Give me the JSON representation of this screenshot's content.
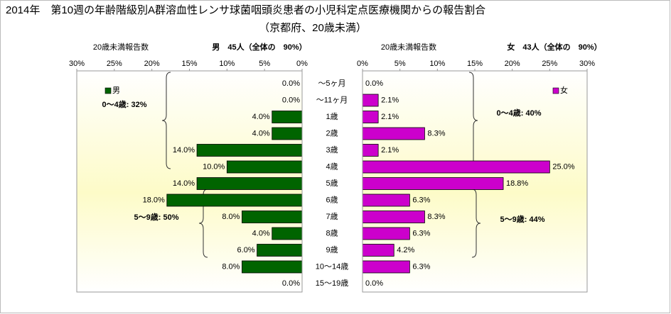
{
  "chart_data": {
    "type": "bar",
    "title": "2014年　第10週の年齢階級別A群溶血性レンサ球菌咽頭炎患者の小児科定点医療機関からの報告割合",
    "subtitle": "（京都府、20歳未満）",
    "categories": [
      "～5ヶ月",
      "～11ヶ月",
      "1歳",
      "2歳",
      "3歳",
      "4歳",
      "5歳",
      "6歳",
      "7歳",
      "8歳",
      "9歳",
      "10～14歳",
      "15～19歳"
    ],
    "series": [
      {
        "name": "男",
        "color": "#006400",
        "axis_label": "20歳未満報告数",
        "summary": "男　45人（全体の　90%）",
        "values": [
          0,
          0,
          4,
          4,
          14,
          10,
          14,
          18,
          8,
          4,
          6,
          8,
          0
        ],
        "value_labels": [
          "0.0%",
          "0.0%",
          "4.0%",
          "4.0%",
          "14.0%",
          "10.0%",
          "14.0%",
          "18.0%",
          "8.0%",
          "4.0%",
          "6.0%",
          "8.0%",
          "0.0%"
        ],
        "annotations": [
          "0～4歳: 32%",
          "5～9歳: 50%"
        ],
        "xlim": [
          0,
          30
        ],
        "reversed": true,
        "xticks": [
          {
            "value": 30,
            "label": "30%"
          },
          {
            "value": 25,
            "label": "25%"
          },
          {
            "value": 20,
            "label": "20%"
          },
          {
            "value": 15,
            "label": "15%"
          },
          {
            "value": 10,
            "label": "10%"
          },
          {
            "value": 5,
            "label": "5%"
          },
          {
            "value": 0,
            "label": "0%"
          }
        ]
      },
      {
        "name": "女",
        "color": "#cc00cc",
        "axis_label": "20歳未満報告数",
        "summary": "女　43人（全体の　90%）",
        "values": [
          0,
          2.1,
          2.1,
          8.3,
          2.1,
          25,
          18.8,
          6.3,
          8.3,
          6.3,
          4.2,
          6.3,
          0
        ],
        "value_labels": [
          "0.0%",
          "2.1%",
          "2.1%",
          "8.3%",
          "2.1%",
          "25.0%",
          "18.8%",
          "6.3%",
          "8.3%",
          "6.3%",
          "4.2%",
          "6.3%",
          "0.0%"
        ],
        "annotations": [
          "0～4歳: 40%",
          "5～9歳: 44%"
        ],
        "xlim": [
          0,
          30
        ],
        "reversed": false,
        "xticks": [
          {
            "value": 0,
            "label": "0%"
          },
          {
            "value": 5,
            "label": "5%"
          },
          {
            "value": 10,
            "label": "10%"
          },
          {
            "value": 15,
            "label": "15%"
          },
          {
            "value": 20,
            "label": "20%"
          },
          {
            "value": 25,
            "label": "25%"
          },
          {
            "value": 30,
            "label": "30%"
          }
        ]
      }
    ]
  }
}
